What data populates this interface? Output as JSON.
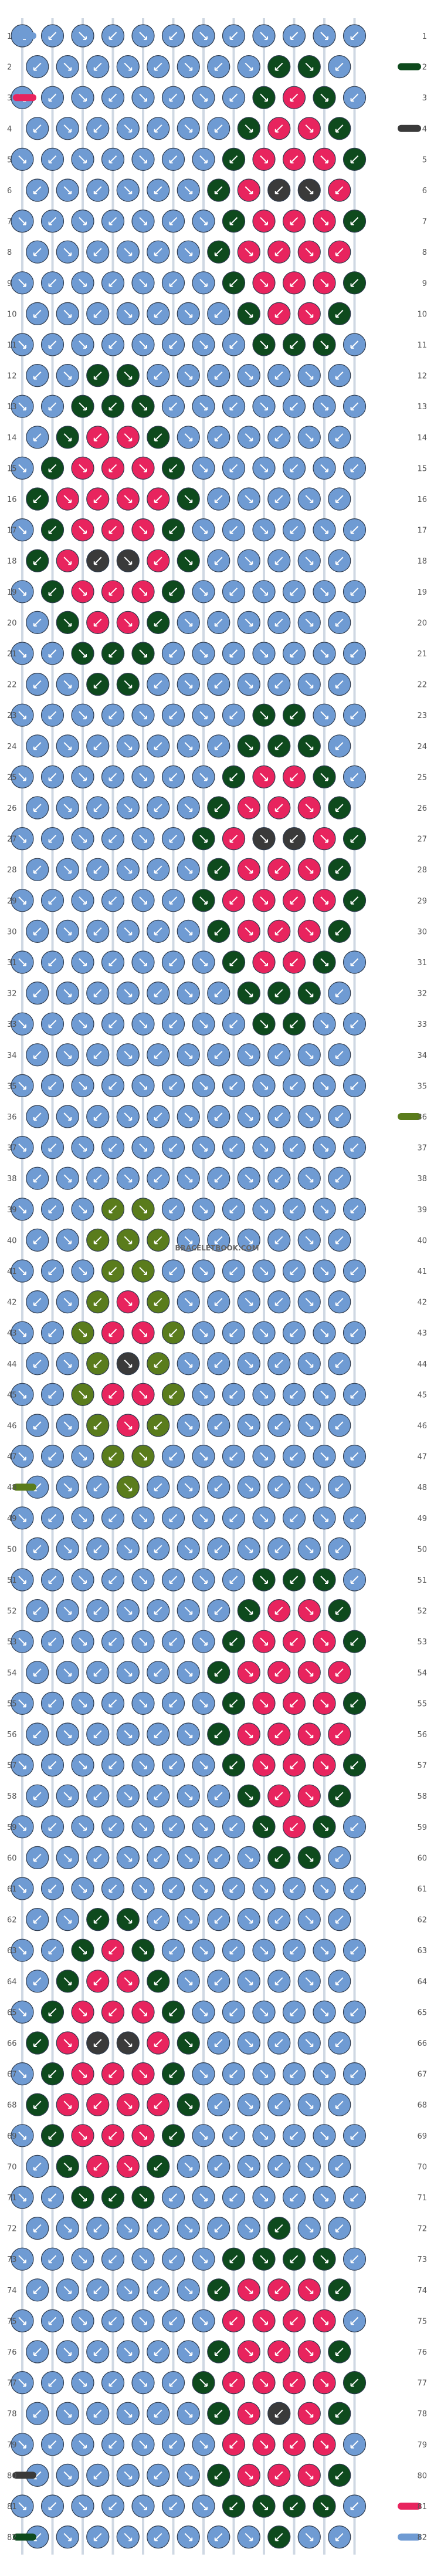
{
  "pattern": {
    "columns": 12,
    "rows": 82,
    "row_labels_left_from": 1,
    "row_labels_right_from": 1,
    "watermark": "BRACELETBOOK.COM",
    "colors": {
      "blue": "#6f9bd3",
      "pink": "#e8245e",
      "dark_green": "#0e4a1d",
      "charcoal": "#3a3a3a",
      "olive": "#5a7c1c",
      "arrow": "#ffffff",
      "thread_line": "#cfd8e3"
    },
    "strands_left": [
      {
        "row": 1,
        "color": "blue"
      },
      {
        "row": 3,
        "color": "pink"
      },
      {
        "row": 48,
        "color": "olive"
      },
      {
        "row": 80,
        "color": "charcoal"
      },
      {
        "row": 82,
        "color": "dark_green"
      }
    ],
    "strands_right": [
      {
        "row": 2,
        "color": "dark_green"
      },
      {
        "row": 4,
        "color": "charcoal"
      },
      {
        "row": 36,
        "color": "olive"
      },
      {
        "row": 81,
        "color": "pink"
      },
      {
        "row": 82,
        "color": "blue"
      }
    ]
  }
}
